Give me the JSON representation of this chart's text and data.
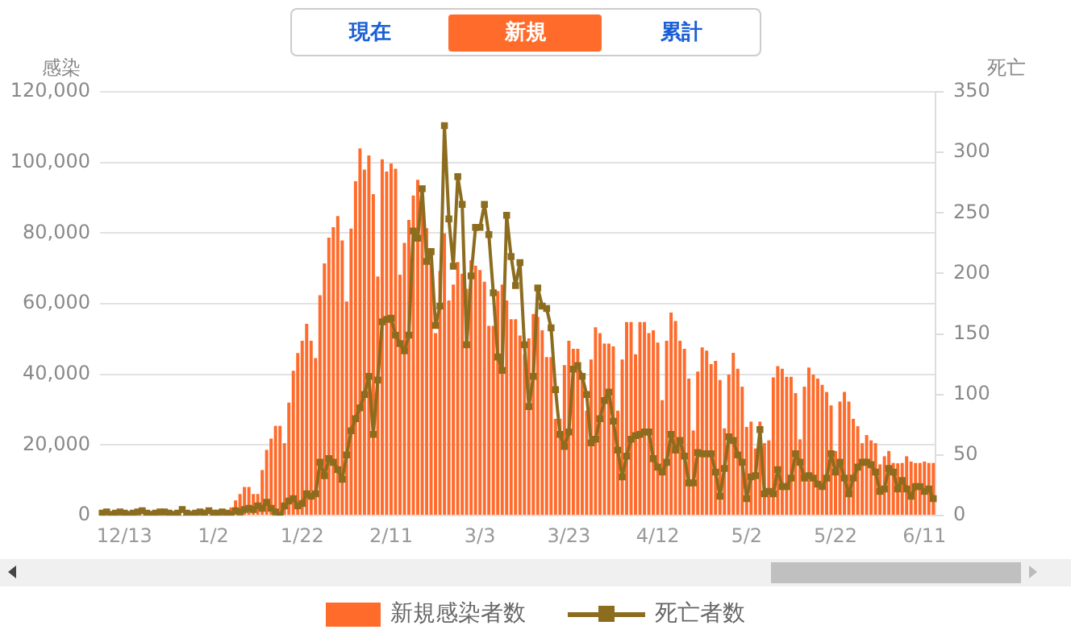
{
  "chart_data": {
    "type": "bar",
    "annotations": [
      "現在",
      "新規",
      "累計"
    ],
    "ylabel": "感染",
    "y2label": "死亡",
    "categories": [
      null,
      null,
      null,
      null,
      null,
      "12/13",
      null,
      null,
      null,
      null,
      null,
      null,
      null,
      null,
      null,
      null,
      null,
      null,
      null,
      null,
      null,
      null,
      null,
      null,
      null,
      "1/2",
      null,
      null,
      null,
      null,
      null,
      null,
      null,
      null,
      null,
      null,
      null,
      null,
      null,
      null,
      null,
      null,
      null,
      null,
      null,
      "1/22",
      null,
      null,
      null,
      null,
      null,
      null,
      null,
      null,
      null,
      null,
      null,
      null,
      null,
      null,
      null,
      null,
      null,
      null,
      null,
      "2/11",
      null,
      null,
      null,
      null,
      null,
      null,
      null,
      null,
      null,
      null,
      null,
      null,
      null,
      null,
      null,
      null,
      null,
      null,
      null,
      "3/3",
      null,
      null,
      null,
      null,
      null,
      null,
      null,
      null,
      null,
      null,
      null,
      null,
      null,
      null,
      null,
      null,
      null,
      null,
      null,
      "3/23",
      null,
      null,
      null,
      null,
      null,
      null,
      null,
      null,
      null,
      null,
      null,
      null,
      null,
      null,
      null,
      null,
      null,
      null,
      null,
      "4/12",
      null,
      null,
      null,
      null,
      null,
      null,
      null,
      null,
      null,
      null,
      null,
      null,
      null,
      null,
      null,
      null,
      null,
      null,
      null,
      "5/2",
      null,
      null,
      null,
      null,
      null,
      null,
      null,
      null,
      null,
      null,
      null,
      null,
      null,
      null,
      null,
      null,
      null,
      null,
      null,
      "5/22",
      null,
      null,
      null,
      null,
      null,
      null,
      null,
      null,
      null,
      null,
      null,
      null,
      null,
      null,
      null,
      null,
      null,
      null,
      null,
      "6/11",
      null,
      null
    ],
    "series": [
      {
        "name": "新規感染者数",
        "color": "#ff6b2b",
        "values": [
          null,
          null,
          null,
          null,
          null,
          null,
          null,
          null,
          null,
          null,
          null,
          null,
          null,
          null,
          null,
          null,
          null,
          null,
          null,
          null,
          null,
          null,
          null,
          null,
          null,
          null,
          null,
          null,
          null,
          2300,
          4300,
          6100,
          8100,
          8100,
          6100,
          6100,
          12900,
          18600,
          21800,
          25400,
          25400,
          20500,
          32000,
          41000,
          46000,
          49500,
          54300,
          49500,
          44600,
          62400,
          71400,
          78700,
          81700,
          84800,
          77900,
          60600,
          81300,
          94700,
          104000,
          98000,
          102000,
          91000,
          67700,
          100900,
          97400,
          99700,
          98200,
          68200,
          77200,
          83700,
          90600,
          95100,
          87500,
          81400,
          71500,
          51700,
          69300,
          79900,
          60900,
          65400,
          71800,
          68500,
          64200,
          72300,
          70800,
          69500,
          66200,
          53700,
          53700,
          63600,
          65400,
          60900,
          55600,
          55600,
          51000,
          45700,
          50200,
          57100,
          56300,
          52500,
          44900,
          44900,
          27400,
          27400,
          42600,
          49500,
          47200,
          47200,
          39600,
          29700,
          44200,
          53300,
          51700,
          48700,
          48700,
          47900,
          29700,
          44200,
          54800,
          54800,
          45700,
          54800,
          54800,
          51700,
          52500,
          49000,
          32700,
          49500,
          57500,
          55100,
          49500,
          47200,
          38800,
          24100,
          40800,
          47600,
          46700,
          42900,
          43800,
          38400,
          24700,
          39900,
          46100,
          41600,
          36500,
          25100,
          26600,
          19000,
          26600,
          20500,
          21300,
          39100,
          42300,
          41600,
          39300,
          39300,
          34700,
          21600,
          36500,
          41900,
          39900,
          38800,
          37000,
          35000,
          31200,
          18300,
          32300,
          35000,
          32300,
          27400,
          25300,
          20500,
          22800,
          21300,
          20500,
          14500,
          16800,
          18300,
          14900,
          14800,
          14900,
          16800,
          15300,
          14900,
          14900,
          15300,
          14900,
          14900
        ]
      },
      {
        "name": "死亡者数",
        "type": "line",
        "axis": "y2",
        "color": "#8c6d1f",
        "values": [
          2,
          3,
          1,
          2,
          3,
          2,
          1,
          2,
          3,
          4,
          2,
          1,
          2,
          3,
          3,
          2,
          1,
          2,
          5,
          2,
          1,
          2,
          3,
          2,
          4,
          2,
          2,
          3,
          2,
          1,
          4,
          3,
          5,
          6,
          5,
          8,
          6,
          11,
          6,
          3,
          0,
          8,
          12,
          14,
          8,
          10,
          18,
          16,
          18,
          44,
          33,
          47,
          44,
          38,
          30,
          50,
          70,
          80,
          89,
          100,
          115,
          67,
          112,
          160,
          162,
          163,
          149,
          142,
          136,
          149,
          235,
          229,
          270,
          210,
          218,
          157,
          173,
          322,
          245,
          206,
          280,
          257,
          141,
          198,
          238,
          238,
          257,
          232,
          184,
          131,
          120,
          248,
          214,
          190,
          209,
          141,
          90,
          115,
          188,
          173,
          171,
          155,
          104,
          67,
          57,
          69,
          121,
          124,
          115,
          100,
          60,
          63,
          80,
          95,
          102,
          78,
          54,
          32,
          49,
          63,
          66,
          67,
          69,
          69,
          47,
          40,
          36,
          44,
          67,
          54,
          62,
          49,
          27,
          27,
          52,
          51,
          51,
          51,
          36,
          16,
          39,
          65,
          62,
          50,
          44,
          14,
          32,
          33,
          71,
          18,
          20,
          18,
          38,
          24,
          24,
          31,
          51,
          44,
          31,
          33,
          31,
          26,
          24,
          31,
          51,
          36,
          44,
          31,
          18,
          31,
          40,
          44,
          44,
          42,
          36,
          20,
          22,
          39,
          36,
          22,
          29,
          22,
          16,
          24,
          24,
          20,
          22,
          14
        ]
      }
    ],
    "ylim": [
      0,
      120000
    ],
    "yticks": [
      0,
      {
        "value": 20000,
        "label": "20,000"
      },
      {
        "value": 40000,
        "label": "40,000"
      },
      {
        "value": 60000,
        "label": "60,000"
      },
      {
        "value": 80000,
        "label": "80,000"
      },
      {
        "value": 100000,
        "label": "100,000"
      },
      {
        "value": 120000,
        "label": "120,000"
      }
    ],
    "y2lim": [
      0,
      350
    ],
    "y2ticks": [
      0,
      50,
      100,
      150,
      200,
      250,
      300,
      350
    ],
    "grid": "y",
    "legend": "bottom",
    "marker": "square"
  }
}
